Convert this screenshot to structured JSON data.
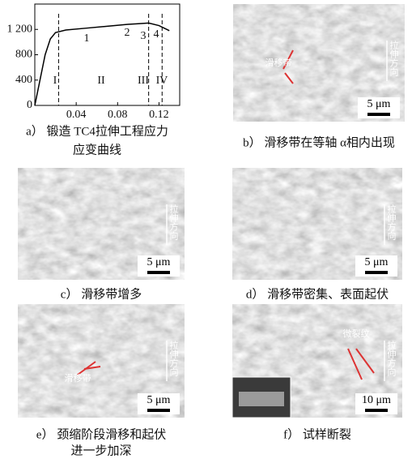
{
  "chart": {
    "type": "line",
    "x": [
      0,
      0.005,
      0.01,
      0.015,
      0.02,
      0.03,
      0.05,
      0.07,
      0.09,
      0.1,
      0.11,
      0.12,
      0.125,
      0.13
    ],
    "y": [
      0,
      400,
      800,
      1050,
      1150,
      1190,
      1220,
      1250,
      1280,
      1290,
      1300,
      1260,
      1220,
      1180
    ],
    "xlim": [
      0,
      0.14
    ],
    "ylim": [
      0,
      1600
    ],
    "xticks": [
      0.04,
      0.08,
      0.12
    ],
    "yticks": [
      0,
      400,
      800,
      {
        "value": 1200,
        "label": "1 200"
      }
    ],
    "dividers": [
      0.023,
      0.11,
      0.123
    ],
    "regions": [
      "I",
      "II",
      "III",
      "IV"
    ],
    "points": [
      "1",
      "2",
      "3",
      "4"
    ]
  },
  "panels": [
    {
      "caption": [
        "a） 锻造 TC4拉伸工程应力",
        "应变曲线"
      ]
    },
    {
      "caption": [
        "b） 滑移带在等轴 α相内出现"
      ],
      "direction": "拉伸方向",
      "annotation": "滑移带",
      "scale": "5 μm"
    },
    {
      "caption": [
        "c） 滑移带增多"
      ],
      "direction": "拉伸方向",
      "scale": "5 μm"
    },
    {
      "caption": [
        "d） 滑移带密集、表面起伏"
      ],
      "direction": "拉伸方向",
      "scale": "5 μm"
    },
    {
      "caption": [
        "e） 颈缩阶段滑移和起伏",
        "进一步加深"
      ],
      "direction": "拉伸方向",
      "annotation": "滑移带",
      "scale": "5 μm"
    },
    {
      "caption": [
        "f） 试样断裂"
      ],
      "direction": "拉伸方向",
      "annotation": "微裂纹",
      "scale": "10 μm"
    }
  ]
}
